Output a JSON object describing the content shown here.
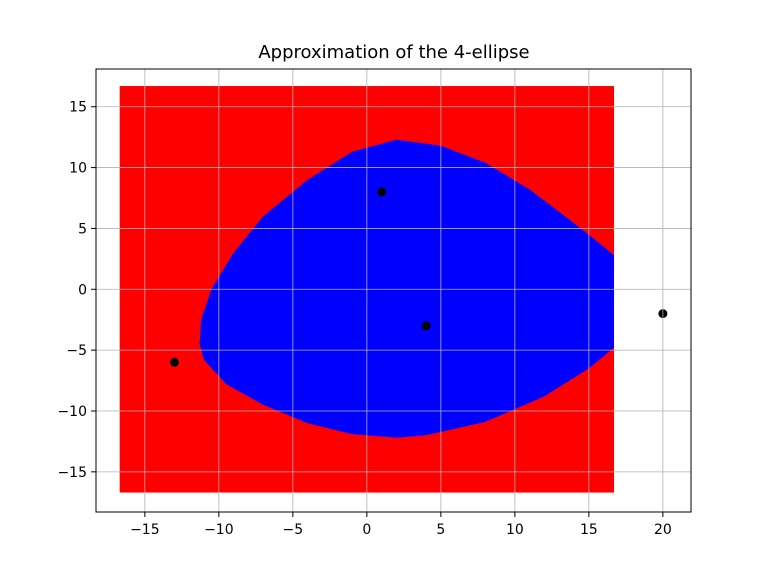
{
  "chart_data": {
    "type": "scatter",
    "title": "Approximation of the 4-ellipse",
    "xlabel": "",
    "ylabel": "",
    "xlim": [
      -18.3,
      21.9
    ],
    "ylim": [
      -18.3,
      18.1
    ],
    "x_ticks": [
      -15,
      -10,
      -5,
      0,
      5,
      10,
      15,
      20
    ],
    "x_tick_labels": [
      "−15",
      "−10",
      "−5",
      "0",
      "5",
      "10",
      "15",
      "20"
    ],
    "y_ticks": [
      -15,
      -10,
      -5,
      0,
      5,
      10,
      15
    ],
    "y_tick_labels": [
      "−15",
      "−10",
      "−5",
      "0",
      "5",
      "10",
      "15"
    ],
    "grid": true,
    "legend": "none",
    "sampled_square": {
      "x": [
        -16.7,
        16.7
      ],
      "y": [
        -16.7,
        16.7
      ],
      "color": "#ff0000"
    },
    "ellipse_region": {
      "color": "#0000ff",
      "boundary": [
        [
          2.0,
          12.3
        ],
        [
          5.0,
          11.8
        ],
        [
          8.0,
          10.4
        ],
        [
          11.0,
          8.2
        ],
        [
          13.5,
          5.9
        ],
        [
          15.3,
          4.2
        ],
        [
          16.7,
          2.8
        ],
        [
          16.7,
          -4.8
        ],
        [
          15.0,
          -6.5
        ],
        [
          12.0,
          -8.8
        ],
        [
          8.0,
          -10.9
        ],
        [
          4.0,
          -12.0
        ],
        [
          2.0,
          -12.2
        ],
        [
          -1.0,
          -11.9
        ],
        [
          -4.0,
          -11.0
        ],
        [
          -7.0,
          -9.5
        ],
        [
          -9.5,
          -7.8
        ],
        [
          -11.0,
          -5.8
        ],
        [
          -11.3,
          -4.5
        ],
        [
          -11.2,
          -2.5
        ],
        [
          -10.5,
          0.0
        ],
        [
          -9.0,
          3.0
        ],
        [
          -7.0,
          6.0
        ],
        [
          -4.0,
          9.0
        ],
        [
          -1.0,
          11.3
        ],
        [
          2.0,
          12.3
        ]
      ]
    },
    "series": [
      {
        "marker_color": "#000000",
        "points": [
          [
            1,
            8
          ],
          [
            4,
            -3
          ],
          [
            -13,
            -6
          ],
          [
            20,
            -2
          ]
        ]
      }
    ]
  }
}
